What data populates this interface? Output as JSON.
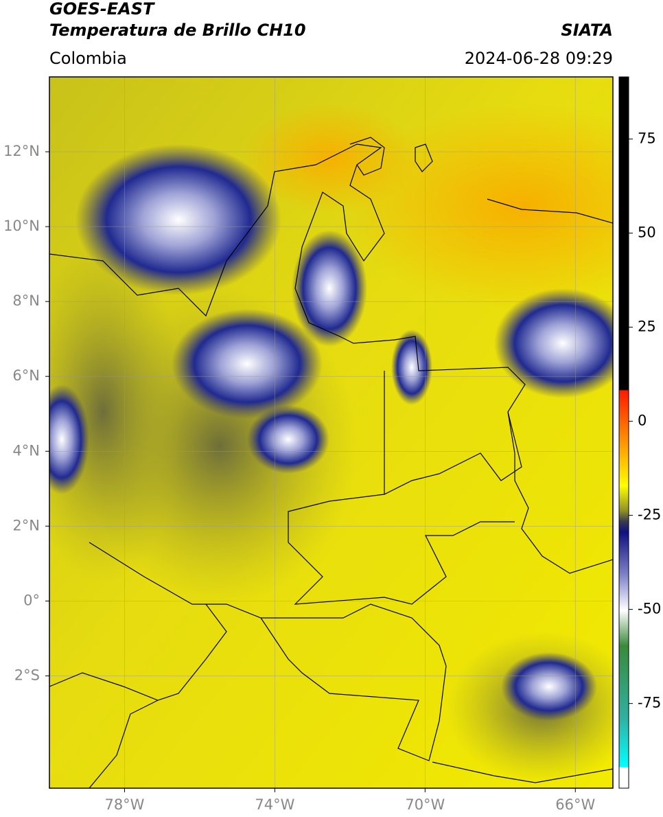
{
  "chart_data": {
    "type": "map",
    "title": "GOES-EAST",
    "subtitle": "Temperatura de Brillo CH10",
    "source": "SIATA",
    "region": "Colombia",
    "timestamp": "2024-06-28 09:29",
    "xlim": [
      -80,
      -65
    ],
    "ylim": [
      -5,
      14
    ],
    "xticks": [
      {
        "value": -78,
        "label": "78°W"
      },
      {
        "value": -74,
        "label": "74°W"
      },
      {
        "value": -70,
        "label": "70°W"
      },
      {
        "value": -66,
        "label": "66°W"
      }
    ],
    "yticks": [
      {
        "value": -2,
        "label": "2°S"
      },
      {
        "value": 0,
        "label": "0°"
      },
      {
        "value": 2,
        "label": "2°N"
      },
      {
        "value": 4,
        "label": "4°N"
      },
      {
        "value": 6,
        "label": "6°N"
      },
      {
        "value": 8,
        "label": "8°N"
      },
      {
        "value": 10,
        "label": "10°N"
      },
      {
        "value": 12,
        "label": "12°N"
      }
    ],
    "grid": true,
    "colorbar": {
      "lim": [
        -97.5,
        91.5
      ],
      "ticks": [
        75,
        50,
        25,
        0,
        -25,
        -50,
        -75
      ]
    }
  }
}
